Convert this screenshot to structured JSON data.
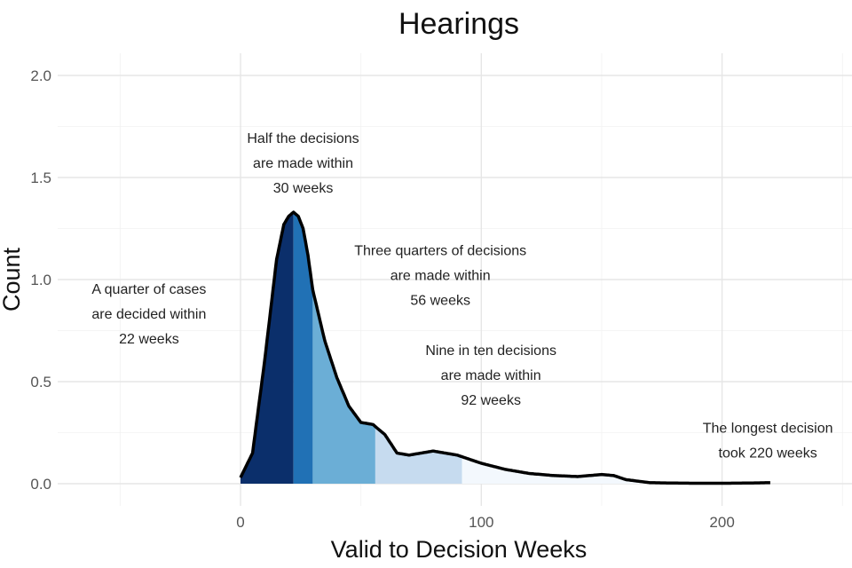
{
  "chart_data": {
    "type": "area",
    "title": "Hearings",
    "xlabel": "Valid to Decision Weeks",
    "ylabel": "Count",
    "xlim": [
      -50,
      255
    ],
    "ylim": [
      0,
      2.0
    ],
    "x_ticks": [
      "0",
      "100",
      "200"
    ],
    "y_ticks": [
      "0.0",
      "0.5",
      "1.0",
      "1.5",
      "2.0"
    ],
    "grid": true,
    "density_curve": {
      "x": [
        0,
        5,
        10,
        15,
        18,
        20,
        22,
        24,
        26,
        28,
        30,
        35,
        40,
        45,
        50,
        55,
        60,
        65,
        70,
        75,
        80,
        85,
        90,
        95,
        100,
        110,
        120,
        130,
        140,
        150,
        155,
        160,
        170,
        180,
        190,
        200,
        210,
        220
      ],
      "y": [
        0.03,
        0.15,
        0.6,
        1.1,
        1.27,
        1.31,
        1.33,
        1.31,
        1.25,
        1.12,
        0.95,
        0.7,
        0.52,
        0.38,
        0.3,
        0.29,
        0.24,
        0.15,
        0.14,
        0.15,
        0.16,
        0.15,
        0.14,
        0.12,
        0.1,
        0.07,
        0.05,
        0.04,
        0.035,
        0.045,
        0.04,
        0.02,
        0.005,
        0.003,
        0.002,
        0.002,
        0.003,
        0.005
      ]
    },
    "bands": [
      {
        "from": 0,
        "to": 22,
        "color": "#0b2f6b",
        "label": "0-22"
      },
      {
        "from": 22,
        "to": 30,
        "color": "#2171b5",
        "label": "22-30"
      },
      {
        "from": 30,
        "to": 56,
        "color": "#6baed6",
        "label": "30-56"
      },
      {
        "from": 56,
        "to": 92,
        "color": "#c6dbef",
        "label": "56-92"
      },
      {
        "from": 92,
        "to": 220,
        "color": "#f3f8fd",
        "label": "92-220"
      }
    ],
    "annotations": [
      {
        "x": -38,
        "y": 0.93,
        "lines": [
          "A quarter of cases",
          "are decided within",
          "22 weeks"
        ]
      },
      {
        "x": 26,
        "y": 1.67,
        "lines": [
          "Half the decisions",
          "are made within",
          "30 weeks"
        ]
      },
      {
        "x": 83,
        "y": 1.12,
        "lines": [
          "Three quarters of decisions",
          "are made within",
          "56 weeks"
        ]
      },
      {
        "x": 104,
        "y": 0.63,
        "lines": [
          "Nine in ten decisions",
          "are made within",
          "92 weeks"
        ]
      },
      {
        "x": 219,
        "y": 0.25,
        "lines": [
          "The longest decision",
          "took 220 weeks"
        ]
      }
    ]
  }
}
